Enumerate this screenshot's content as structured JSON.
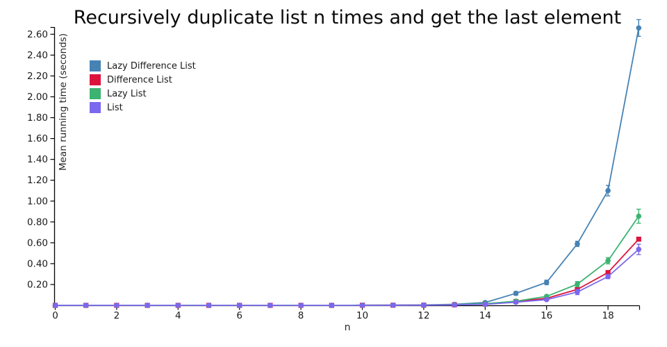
{
  "chart_data": {
    "type": "line",
    "title": "Recursively duplicate list n times and get the last element",
    "xlabel": "n",
    "ylabel": "Mean running time (seconds)",
    "grid": false,
    "legend_position": "upper-left-inside",
    "xlim": [
      0,
      19.05
    ],
    "ylim": [
      0,
      2.69
    ],
    "x_ticks": [
      0,
      2,
      4,
      6,
      8,
      10,
      12,
      14,
      16,
      18
    ],
    "y_ticks": [
      0.2,
      0.4,
      0.6,
      0.8,
      1.0,
      1.2,
      1.4,
      1.6,
      1.8,
      2.0,
      2.2,
      2.4,
      2.6
    ],
    "x": [
      0,
      1,
      2,
      3,
      4,
      5,
      6,
      7,
      8,
      9,
      10,
      11,
      12,
      13,
      14,
      15,
      16,
      17,
      18,
      19
    ],
    "series": [
      {
        "name": "Lazy Difference List",
        "color": "#4682B4",
        "marker": "circle",
        "values": [
          0,
          0,
          0,
          0,
          0,
          0,
          0,
          0,
          0,
          0,
          0.001,
          0.002,
          0.004,
          0.01,
          0.027,
          0.115,
          0.22,
          0.59,
          1.1,
          2.66
        ],
        "errors": [
          0,
          0,
          0,
          0,
          0,
          0,
          0,
          0,
          0,
          0,
          0,
          0,
          0,
          0,
          0.008,
          0.018,
          0.022,
          0.025,
          0.05,
          0.08
        ]
      },
      {
        "name": "Difference List",
        "color": "#DC143C",
        "marker": "square",
        "values": [
          0,
          0,
          0,
          0,
          0,
          0,
          0,
          0,
          0,
          0,
          0.001,
          0.001,
          0.002,
          0.005,
          0.012,
          0.037,
          0.067,
          0.153,
          0.315,
          0.635
        ],
        "errors": [
          0,
          0,
          0,
          0,
          0,
          0,
          0,
          0,
          0,
          0,
          0,
          0,
          0,
          0,
          0.004,
          0.006,
          0.008,
          0.008,
          0.01,
          0.012
        ]
      },
      {
        "name": "Lazy List",
        "color": "#3CB371",
        "marker": "circle",
        "values": [
          0,
          0,
          0,
          0,
          0,
          0,
          0,
          0,
          0,
          0,
          0.001,
          0.001,
          0.002,
          0.006,
          0.015,
          0.04,
          0.086,
          0.203,
          0.428,
          0.855
        ],
        "errors": [
          0,
          0,
          0,
          0,
          0,
          0,
          0,
          0,
          0,
          0,
          0,
          0,
          0,
          0,
          0.005,
          0.008,
          0.012,
          0.025,
          0.03,
          0.067
        ]
      },
      {
        "name": "List",
        "color": "#7B68EE",
        "marker": "circle",
        "values": [
          0,
          0,
          0,
          0,
          0,
          0,
          0,
          0,
          0,
          0,
          0.0,
          0.001,
          0.002,
          0.004,
          0.01,
          0.03,
          0.055,
          0.128,
          0.276,
          0.537
        ],
        "errors": [
          0,
          0,
          0,
          0,
          0,
          0,
          0,
          0,
          0,
          0,
          0,
          0,
          0,
          0,
          0.004,
          0.006,
          0.01,
          0.025,
          0.02,
          0.05
        ]
      }
    ]
  }
}
